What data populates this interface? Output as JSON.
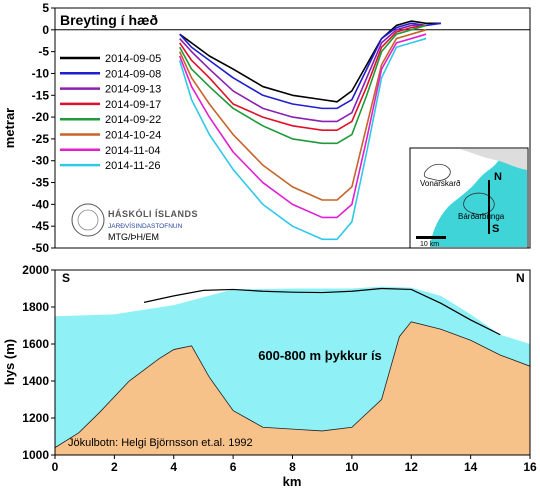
{
  "chart_data": [
    {
      "type": "line",
      "title": "Breyting í hæð",
      "ylabel": "metrar",
      "xlim": [
        0,
        16
      ],
      "ylim": [
        -50,
        5
      ],
      "yticks": [
        5,
        0,
        -5,
        -10,
        -15,
        -20,
        -25,
        -30,
        -35,
        -40,
        -45,
        -50
      ],
      "legend_position": "left",
      "series": [
        {
          "name": "2014-09-05",
          "color": "#000000",
          "x": [
            4.2,
            4.6,
            5.2,
            6.0,
            7.0,
            8.0,
            9.0,
            9.5,
            10.0,
            10.5,
            11.0,
            11.5,
            12.0,
            12.5,
            13.0
          ],
          "y": [
            -1,
            -3,
            -6,
            -9,
            -13,
            -15,
            -16,
            -16.5,
            -14,
            -8,
            -2,
            1,
            2,
            1.5,
            1.5
          ]
        },
        {
          "name": "2014-09-08",
          "color": "#1f1fd0",
          "x": [
            4.2,
            4.6,
            5.2,
            6.0,
            7.0,
            8.0,
            9.0,
            9.5,
            10.0,
            10.5,
            11.0,
            11.5,
            12.0,
            12.5,
            13.0
          ],
          "y": [
            -1,
            -4,
            -7,
            -11,
            -15,
            -17,
            -18,
            -18,
            -16,
            -9,
            -2,
            0.5,
            1.5,
            1,
            1.5
          ]
        },
        {
          "name": "2014-09-13",
          "color": "#8a1fb0",
          "x": [
            4.2,
            4.6,
            5.2,
            6.0,
            7.0,
            8.0,
            9.0,
            9.5,
            10.0,
            10.5,
            11.0,
            11.5,
            12.0,
            12.5
          ],
          "y": [
            -2,
            -5,
            -9,
            -14,
            -18,
            -20,
            -21,
            -21,
            -19,
            -11,
            -3,
            0,
            1,
            1
          ]
        },
        {
          "name": "2014-09-17",
          "color": "#e0102a",
          "x": [
            4.2,
            4.6,
            5.2,
            6.0,
            7.0,
            8.0,
            9.0,
            9.5,
            10.0,
            10.5,
            11.0,
            11.5,
            12.0,
            12.5
          ],
          "y": [
            -3,
            -7,
            -11,
            -17,
            -20,
            -22,
            -23,
            -23,
            -21,
            -13,
            -4,
            -0.5,
            0.5,
            1
          ]
        },
        {
          "name": "2014-09-22",
          "color": "#1e9a3a",
          "x": [
            4.2,
            4.6,
            5.2,
            6.0,
            7.0,
            8.0,
            9.0,
            9.5,
            10.0,
            10.5,
            11.0,
            11.5,
            12.0,
            12.5
          ],
          "y": [
            -4,
            -9,
            -13,
            -18,
            -22,
            -25,
            -26,
            -26,
            -24,
            -15,
            -5,
            -1,
            0,
            1
          ]
        },
        {
          "name": "2014-10-24",
          "color": "#c8642a",
          "x": [
            4.2,
            4.6,
            5.2,
            6.0,
            7.0,
            8.0,
            9.0,
            9.5,
            10.0,
            10.5,
            11.0,
            11.5,
            12.0,
            12.5
          ],
          "y": [
            -5,
            -11,
            -17,
            -24,
            -31,
            -36,
            -39,
            -39,
            -36,
            -22,
            -8,
            -2,
            -1,
            0
          ]
        },
        {
          "name": "2014-11-04",
          "color": "#e020d0",
          "x": [
            4.2,
            4.6,
            5.2,
            6.0,
            7.0,
            8.0,
            9.0,
            9.5,
            10.0,
            10.5,
            11.0,
            11.5,
            12.0,
            12.5
          ],
          "y": [
            -6,
            -13,
            -20,
            -28,
            -35,
            -40,
            -43,
            -43,
            -40,
            -25,
            -9,
            -3,
            -2,
            -1
          ]
        },
        {
          "name": "2014-11-26",
          "color": "#30c8e8",
          "x": [
            4.2,
            4.6,
            5.2,
            6.0,
            7.0,
            8.0,
            9.0,
            9.5,
            10.0,
            10.5,
            11.0,
            11.5,
            12.0,
            12.5
          ],
          "y": [
            -7,
            -16,
            -24,
            -32,
            -40,
            -45,
            -48,
            -48,
            -44,
            -28,
            -11,
            -4,
            -3,
            -2
          ]
        }
      ]
    },
    {
      "type": "area",
      "xlabel": "km",
      "ylabel": "hys (m)",
      "xlim": [
        0,
        16
      ],
      "ylim": [
        1000,
        2000
      ],
      "xticks": [
        0,
        2,
        4,
        6,
        8,
        10,
        12,
        14,
        16
      ],
      "yticks": [
        1000,
        1200,
        1400,
        1600,
        1800,
        2000
      ],
      "series": [
        {
          "name": "ice",
          "color": "#8ff0f6",
          "x": [
            0,
            2,
            4,
            6,
            8,
            10,
            11,
            12,
            13,
            14,
            15,
            16
          ],
          "y": [
            1750,
            1760,
            1810,
            1895,
            1900,
            1900,
            1910,
            1905,
            1860,
            1760,
            1650,
            1600
          ]
        },
        {
          "name": "bedrock",
          "color": "#f7c18a",
          "x": [
            0,
            0.8,
            1.5,
            2.5,
            3.5,
            4.0,
            4.6,
            5.2,
            6.0,
            7.0,
            8.0,
            9.0,
            10.0,
            11.0,
            11.6,
            12.0,
            13.0,
            14.0,
            15.0,
            16.0
          ],
          "y": [
            1040,
            1120,
            1230,
            1400,
            1520,
            1570,
            1590,
            1420,
            1240,
            1150,
            1140,
            1130,
            1150,
            1300,
            1640,
            1720,
            1680,
            1620,
            1540,
            1480
          ]
        }
      ],
      "surface_line": {
        "color": "#000000",
        "x": [
          3,
          4,
          5,
          6,
          7,
          8,
          9,
          10,
          11,
          12,
          13,
          14,
          15
        ],
        "y": [
          1825,
          1860,
          1890,
          1895,
          1885,
          1880,
          1878,
          1885,
          1900,
          1895,
          1820,
          1730,
          1650
        ]
      },
      "labels": {
        "left": "S",
        "right": "N",
        "center": "600-800 m þykkur ís",
        "source": "Jökulbotn: Helgi Björnsson et.al. 1992"
      }
    }
  ],
  "logo": {
    "line1": "HÁSKÓLI ÍSLANDS",
    "line2": "JARÐVÍSINDASTOFNUN",
    "line3": "MTG/ÞH/EM"
  },
  "inset_map": {
    "label1": "Vonarskarð",
    "label2": "Bárðarbunga",
    "north": "N",
    "south": "S",
    "scale": "10 km"
  }
}
